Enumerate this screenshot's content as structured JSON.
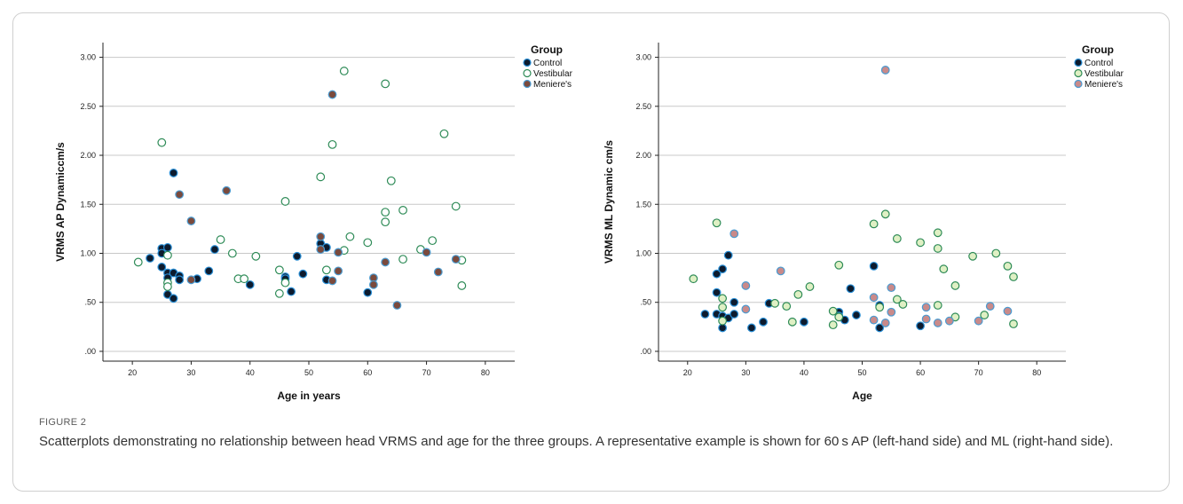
{
  "figure": {
    "label": "FIGURE 2",
    "caption": "Scatterplots demonstrating no relationship between head VRMS and age for the three groups. A representative example is shown for 60 s AP (left-hand side) and ML (right-hand side)."
  },
  "colors": {
    "control_fill": "#0d1b2e",
    "control_edge": "#2a8fd6",
    "vestibular_fill": "#ffffff",
    "vestibular_fill_alt": "#dff0c4",
    "vestibular_edge": "#2e8b57",
    "meniere_fill": "#7a4a3d",
    "meniere_fill_alt": "#c98a8a",
    "meniere_edge": "#4a9bd1",
    "grid": "#c8c8c8",
    "axis": "#222222"
  },
  "chart_data": [
    {
      "type": "scatter",
      "title": "",
      "xlabel": "Age in years",
      "ylabel": "VRMS AP Dynamiccm/s",
      "xlim": [
        15,
        85
      ],
      "ylim": [
        -0.1,
        3.15
      ],
      "x_ticks": [
        20,
        30,
        40,
        50,
        60,
        70,
        80
      ],
      "x_tick_labels": [
        "20",
        "30",
        "40",
        "50",
        "60",
        "70",
        "80"
      ],
      "y_ticks": [
        0,
        0.5,
        1.0,
        1.5,
        2.0,
        2.5,
        3.0
      ],
      "y_tick_labels": [
        ".00",
        ".50",
        "1.00",
        "1.50",
        "2.00",
        "2.50",
        "3.00"
      ],
      "grid": "horizontal",
      "legend_title": "Group",
      "legend_position": "top-right",
      "series": [
        {
          "name": "Control",
          "style": "control",
          "points": [
            [
              23,
              0.95
            ],
            [
              25,
              1.05
            ],
            [
              25,
              1.0
            ],
            [
              25,
              0.86
            ],
            [
              26,
              1.06
            ],
            [
              26,
              0.8
            ],
            [
              26,
              0.75
            ],
            [
              26,
              0.58
            ],
            [
              27,
              0.54
            ],
            [
              27,
              0.8
            ],
            [
              27,
              1.82
            ],
            [
              28,
              0.77
            ],
            [
              28,
              0.73
            ],
            [
              31,
              0.74
            ],
            [
              33,
              0.82
            ],
            [
              34,
              1.04
            ],
            [
              40,
              0.68
            ],
            [
              46,
              0.76
            ],
            [
              46,
              0.74
            ],
            [
              47,
              0.61
            ],
            [
              48,
              0.97
            ],
            [
              49,
              0.79
            ],
            [
              52,
              1.1
            ],
            [
              53,
              1.06
            ],
            [
              53,
              0.73
            ],
            [
              60,
              0.6
            ]
          ]
        },
        {
          "name": "Vestibular",
          "style": "vestibular",
          "points": [
            [
              21,
              0.91
            ],
            [
              25,
              2.13
            ],
            [
              26,
              0.98
            ],
            [
              26,
              0.7
            ],
            [
              26,
              0.66
            ],
            [
              35,
              1.14
            ],
            [
              37,
              1.0
            ],
            [
              38,
              0.74
            ],
            [
              39,
              0.74
            ],
            [
              41,
              0.97
            ],
            [
              45,
              0.83
            ],
            [
              45,
              0.59
            ],
            [
              46,
              1.53
            ],
            [
              46,
              0.7
            ],
            [
              52,
              1.78
            ],
            [
              53,
              0.83
            ],
            [
              54,
              2.11
            ],
            [
              56,
              2.86
            ],
            [
              56,
              1.03
            ],
            [
              57,
              1.17
            ],
            [
              60,
              1.11
            ],
            [
              63,
              2.73
            ],
            [
              63,
              1.42
            ],
            [
              63,
              1.32
            ],
            [
              64,
              1.74
            ],
            [
              66,
              1.44
            ],
            [
              66,
              0.94
            ],
            [
              69,
              1.04
            ],
            [
              71,
              1.13
            ],
            [
              73,
              2.22
            ],
            [
              75,
              1.48
            ],
            [
              76,
              0.93
            ],
            [
              76,
              0.67
            ]
          ]
        },
        {
          "name": "Meniere's",
          "style": "meniere",
          "points": [
            [
              28,
              1.6
            ],
            [
              30,
              1.33
            ],
            [
              30,
              0.73
            ],
            [
              36,
              1.64
            ],
            [
              52,
              1.17
            ],
            [
              52,
              1.04
            ],
            [
              54,
              2.62
            ],
            [
              54,
              0.72
            ],
            [
              55,
              1.01
            ],
            [
              55,
              0.82
            ],
            [
              61,
              0.75
            ],
            [
              61,
              0.68
            ],
            [
              63,
              0.91
            ],
            [
              65,
              0.47
            ],
            [
              70,
              1.01
            ],
            [
              72,
              0.81
            ],
            [
              75,
              0.94
            ]
          ]
        }
      ]
    },
    {
      "type": "scatter",
      "title": "",
      "xlabel": "Age",
      "ylabel": "VRMS ML Dynamic cm/s",
      "xlim": [
        15,
        85
      ],
      "ylim": [
        -0.1,
        3.15
      ],
      "x_ticks": [
        20,
        30,
        40,
        50,
        60,
        70,
        80
      ],
      "x_tick_labels": [
        "20",
        "30",
        "40",
        "50",
        "60",
        "70",
        "80"
      ],
      "y_ticks": [
        0,
        0.5,
        1.0,
        1.5,
        2.0,
        2.5,
        3.0
      ],
      "y_tick_labels": [
        ".00",
        ".50",
        "1.00",
        "1.50",
        "2.00",
        "2.50",
        "3.00"
      ],
      "grid": "horizontal",
      "legend_title": "Group",
      "legend_position": "top-right",
      "series": [
        {
          "name": "Control",
          "style": "control",
          "points": [
            [
              23,
              0.38
            ],
            [
              25,
              0.79
            ],
            [
              25,
              0.6
            ],
            [
              25,
              0.38
            ],
            [
              26,
              0.84
            ],
            [
              26,
              0.36
            ],
            [
              26,
              0.24
            ],
            [
              27,
              0.98
            ],
            [
              27,
              0.34
            ],
            [
              28,
              0.5
            ],
            [
              28,
              0.38
            ],
            [
              31,
              0.24
            ],
            [
              33,
              0.3
            ],
            [
              34,
              0.49
            ],
            [
              40,
              0.3
            ],
            [
              46,
              0.4
            ],
            [
              46,
              0.36
            ],
            [
              47,
              0.32
            ],
            [
              48,
              0.64
            ],
            [
              49,
              0.37
            ],
            [
              52,
              0.87
            ],
            [
              53,
              0.47
            ],
            [
              53,
              0.24
            ],
            [
              60,
              0.26
            ]
          ]
        },
        {
          "name": "Vestibular",
          "style": "vestibular",
          "points": [
            [
              21,
              0.74
            ],
            [
              25,
              1.31
            ],
            [
              26,
              0.54
            ],
            [
              26,
              0.45
            ],
            [
              26,
              0.31
            ],
            [
              35,
              0.49
            ],
            [
              37,
              0.46
            ],
            [
              38,
              0.3
            ],
            [
              39,
              0.58
            ],
            [
              41,
              0.66
            ],
            [
              45,
              0.41
            ],
            [
              45,
              0.27
            ],
            [
              46,
              0.88
            ],
            [
              46,
              0.35
            ],
            [
              52,
              1.3
            ],
            [
              53,
              0.45
            ],
            [
              54,
              1.4
            ],
            [
              56,
              1.15
            ],
            [
              56,
              0.53
            ],
            [
              57,
              0.48
            ],
            [
              60,
              1.11
            ],
            [
              63,
              1.21
            ],
            [
              63,
              1.05
            ],
            [
              63,
              0.47
            ],
            [
              64,
              0.84
            ],
            [
              66,
              0.67
            ],
            [
              66,
              0.35
            ],
            [
              69,
              0.97
            ],
            [
              71,
              0.37
            ],
            [
              73,
              1.0
            ],
            [
              75,
              0.87
            ],
            [
              76,
              0.76
            ],
            [
              76,
              0.28
            ]
          ]
        },
        {
          "name": "Meniere's",
          "style": "meniere",
          "points": [
            [
              28,
              1.2
            ],
            [
              30,
              0.67
            ],
            [
              30,
              0.43
            ],
            [
              36,
              0.82
            ],
            [
              52,
              0.55
            ],
            [
              52,
              0.32
            ],
            [
              54,
              2.87
            ],
            [
              54,
              0.29
            ],
            [
              55,
              0.65
            ],
            [
              55,
              0.4
            ],
            [
              61,
              0.45
            ],
            [
              61,
              0.33
            ],
            [
              63,
              0.29
            ],
            [
              65,
              0.31
            ],
            [
              70,
              0.31
            ],
            [
              72,
              0.46
            ],
            [
              75,
              0.41
            ]
          ]
        }
      ]
    }
  ]
}
